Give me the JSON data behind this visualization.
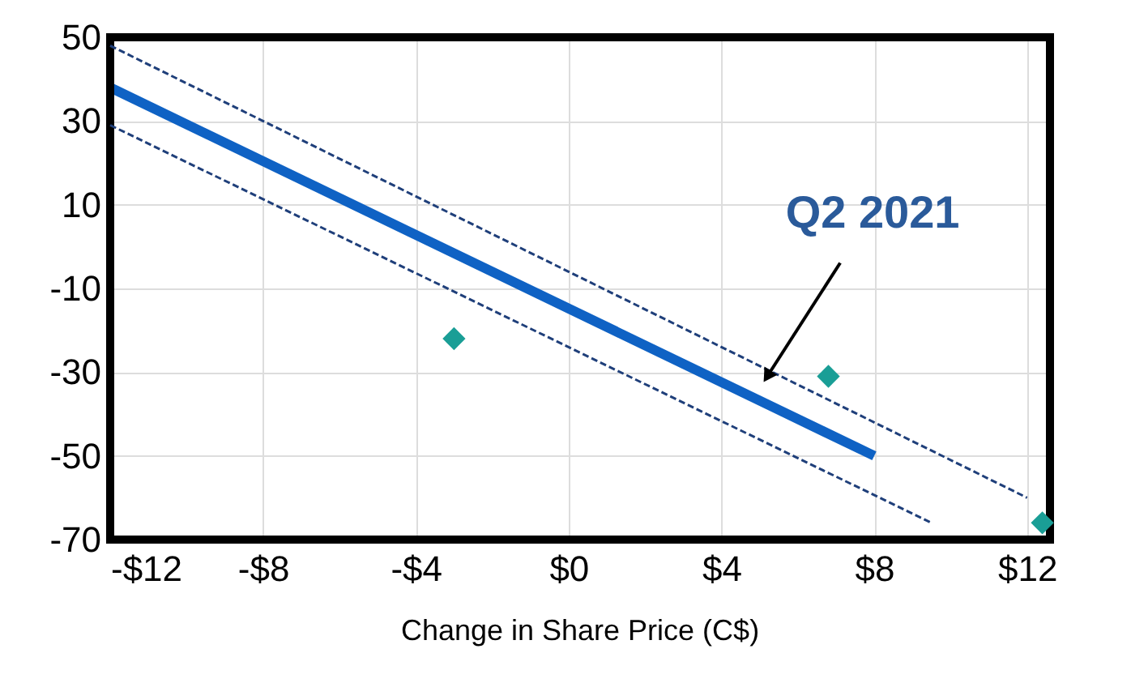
{
  "chart_data": {
    "type": "line",
    "xlabel": "Change in Share Price (C$)",
    "xlim": [
      -12,
      12.6
    ],
    "xticks": [
      {
        "value": -12,
        "label": "-$12"
      },
      {
        "value": -8,
        "label": "-$8"
      },
      {
        "value": -4,
        "label": "-$4"
      },
      {
        "value": 0,
        "label": "$0"
      },
      {
        "value": 4,
        "label": "$4"
      },
      {
        "value": 8,
        "label": "$8"
      },
      {
        "value": 12,
        "label": "$12"
      }
    ],
    "ylim": [
      -70,
      50
    ],
    "yticks": [
      50,
      30,
      10,
      -10,
      -30,
      -50,
      -70
    ],
    "grid": true,
    "series": [
      {
        "type": "line",
        "color": "#0f62c4",
        "line_style": "solid",
        "x": [
          -12,
          8
        ],
        "values": [
          38,
          -50
        ]
      },
      {
        "type": "line",
        "color": "#1f3f7a",
        "line_style": "dashed",
        "x": [
          -12,
          12
        ],
        "values": [
          48,
          -60
        ]
      },
      {
        "type": "line",
        "color": "#1f3f7a",
        "line_style": "dashed",
        "x": [
          -12,
          9.5
        ],
        "values": [
          29,
          -66
        ]
      },
      {
        "type": "scatter",
        "color": "#1a9e96",
        "marker": "diamond",
        "x": [
          -3,
          6.8,
          12.4
        ],
        "values": [
          -22,
          -31,
          -66
        ]
      }
    ],
    "annotations": [
      {
        "text": "Q2 2021",
        "x": 5.2,
        "y": -31
      }
    ]
  }
}
